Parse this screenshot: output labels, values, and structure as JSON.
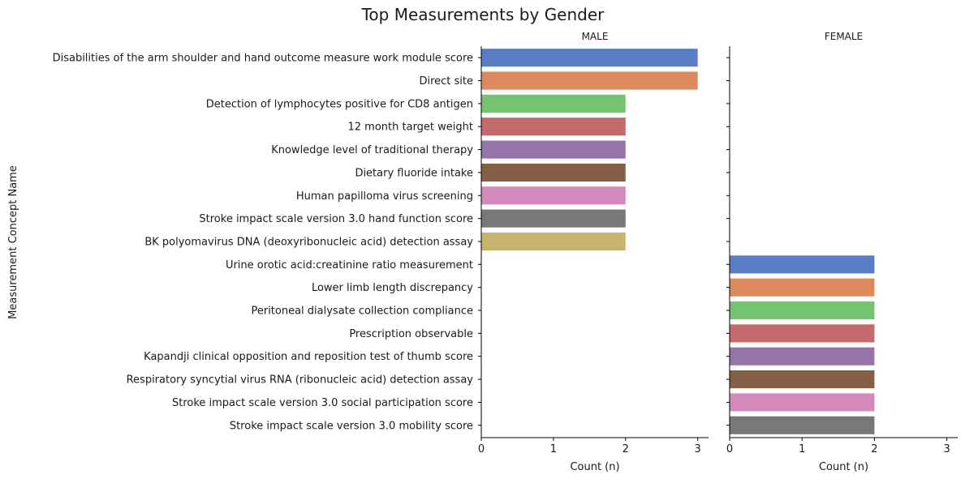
{
  "chart_data": {
    "type": "bar",
    "orientation": "horizontal",
    "title": "Top Measurements by Gender",
    "ylabel": "Measurement Concept Name",
    "xlabel": "Count (n)",
    "xlim": [
      0,
      3.15
    ],
    "xticks": [
      0,
      1,
      2,
      3
    ],
    "grid": false,
    "categories": [
      "Disabilities of the arm shoulder and hand outcome measure work module score",
      "Direct site",
      "Detection of lymphocytes positive for CD8 antigen",
      "12 month target weight",
      "Knowledge level of traditional therapy",
      "Dietary fluoride intake",
      "Human papilloma virus screening",
      "Stroke impact scale version 3.0 hand function score",
      "BK polyomavirus DNA (deoxyribonucleic acid) detection assay",
      "Urine orotic acid:creatinine ratio measurement",
      "Lower limb length discrepancy",
      "Peritoneal dialysate collection compliance",
      "Prescription observable",
      "Kapandji clinical opposition and reposition test of thumb score",
      "Respiratory syncytial virus RNA (ribonucleic acid) detection assay",
      "Stroke impact scale version 3.0 social participation score",
      "Stroke impact scale version 3.0 mobility score"
    ],
    "panels": [
      {
        "name": "MALE",
        "values": [
          3,
          3,
          2,
          2,
          2,
          2,
          2,
          2,
          2,
          0,
          0,
          0,
          0,
          0,
          0,
          0,
          0
        ],
        "colors": [
          "#5a7ec3",
          "#dc8a5d",
          "#75c26f",
          "#c56a6c",
          "#9474aa",
          "#836045",
          "#d28abb",
          "#787878",
          "#c9b46f",
          null,
          null,
          null,
          null,
          null,
          null,
          null,
          null
        ]
      },
      {
        "name": "FEMALE",
        "values": [
          0,
          0,
          0,
          0,
          0,
          0,
          0,
          0,
          0,
          2,
          2,
          2,
          2,
          2,
          2,
          2,
          2
        ],
        "colors": [
          null,
          null,
          null,
          null,
          null,
          null,
          null,
          null,
          null,
          "#5a7ec3",
          "#dc8a5d",
          "#75c26f",
          "#c56a6c",
          "#9474aa",
          "#836045",
          "#d28abb",
          "#787878"
        ]
      }
    ]
  }
}
